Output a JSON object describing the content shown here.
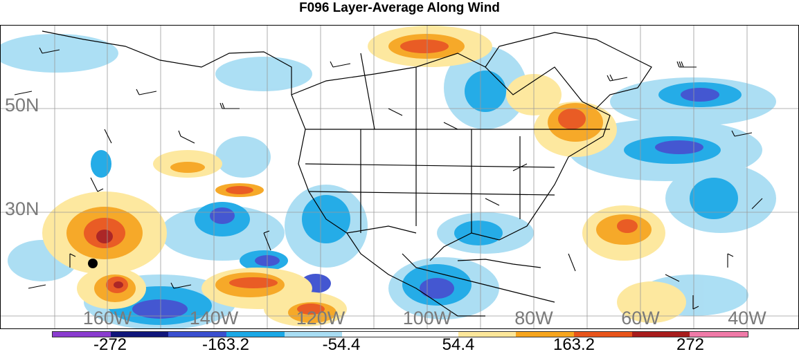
{
  "title": "F096 Layer-Average Along Wind",
  "lat_labels": [
    "50N",
    "30N"
  ],
  "lon_labels": [
    "160W",
    "140W",
    "120W",
    "100W",
    "80W",
    "60W",
    "40W"
  ],
  "colorbar": {
    "colors": [
      "#8a3ccf",
      "#10167a",
      "#3a4fcf",
      "#1aa8e6",
      "#a8ddf3",
      "#ffffff",
      "#ffffff",
      "#fde79a",
      "#f6a51e",
      "#e8541a",
      "#a81c1c",
      "#f07aa8"
    ],
    "labels": [
      "-272",
      "-163.2",
      "-54.4",
      "54.4",
      "163.2",
      "272"
    ]
  },
  "marker": "black-dot"
}
